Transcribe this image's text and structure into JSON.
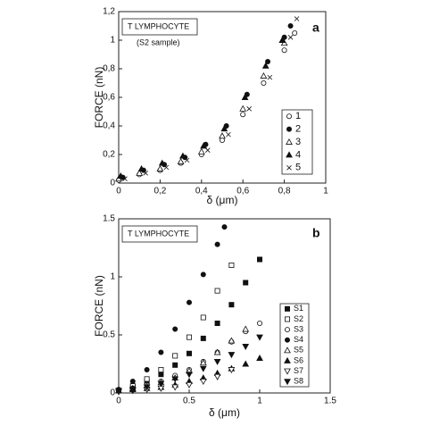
{
  "chart_data": [
    {
      "type": "scatter",
      "panel_label": "a",
      "annotation": "T   LYMPHOCYTE",
      "subannotation": "(S2 sample)",
      "x_label": "δ (μm)",
      "y_label": "FORCE (nN)",
      "xlim": [
        0,
        1
      ],
      "ylim": [
        0,
        1.2
      ],
      "xticks": [
        0,
        {
          "value": 0.2,
          "label": "0,2"
        },
        {
          "value": 0.4,
          "label": "0,4"
        },
        {
          "value": 0.6,
          "label": "0,6"
        },
        {
          "value": 0.8,
          "label": "0,8"
        },
        1
      ],
      "yticks": [
        0,
        {
          "value": 0.2,
          "label": "0,2"
        },
        {
          "value": 0.4,
          "label": "0,4"
        },
        {
          "value": 0.6,
          "label": "0,6"
        },
        {
          "value": 0.8,
          "label": "0,8"
        },
        1,
        {
          "value": 1.2,
          "label": "1,2"
        }
      ],
      "grid": false,
      "series": [
        {
          "name": "1",
          "marker": "circle-open",
          "color": "#111",
          "x": [
            0,
            0.1,
            0.2,
            0.3,
            0.4,
            0.5,
            0.6,
            0.7,
            0.8,
            0.85
          ],
          "values": [
            0.02,
            0.06,
            0.09,
            0.14,
            0.2,
            0.3,
            0.48,
            0.7,
            0.93,
            1.05
          ]
        },
        {
          "name": "2",
          "marker": "circle",
          "color": "#111",
          "x": [
            0.02,
            0.12,
            0.22,
            0.32,
            0.42,
            0.52,
            0.62,
            0.72,
            0.8,
            0.83
          ],
          "values": [
            0.04,
            0.09,
            0.13,
            0.18,
            0.27,
            0.4,
            0.62,
            0.85,
            1.02,
            1.1
          ]
        },
        {
          "name": "3",
          "marker": "triangle-open",
          "color": "#111",
          "x": [
            0,
            0.1,
            0.2,
            0.3,
            0.4,
            0.5,
            0.6,
            0.7,
            0.8
          ],
          "values": [
            0.03,
            0.07,
            0.1,
            0.15,
            0.22,
            0.33,
            0.52,
            0.75,
            0.98
          ]
        },
        {
          "name": "4",
          "marker": "triangle",
          "color": "#111",
          "x": [
            0.01,
            0.11,
            0.21,
            0.31,
            0.41,
            0.51,
            0.61,
            0.71,
            0.79
          ],
          "values": [
            0.05,
            0.1,
            0.14,
            0.19,
            0.26,
            0.38,
            0.6,
            0.82,
            1.0
          ]
        },
        {
          "name": "5",
          "marker": "cross",
          "color": "#111",
          "x": [
            0.03,
            0.13,
            0.23,
            0.33,
            0.43,
            0.53,
            0.63,
            0.73,
            0.83,
            0.86
          ],
          "values": [
            0.03,
            0.07,
            0.11,
            0.16,
            0.23,
            0.34,
            0.52,
            0.74,
            1.02,
            1.15
          ]
        }
      ]
    },
    {
      "type": "scatter",
      "panel_label": "b",
      "annotation": "T   LYMPHOCYTE",
      "x_label": "δ (μm)",
      "y_label": "FORCE (nN)",
      "xlim": [
        0,
        1.5
      ],
      "ylim": [
        0,
        1.5
      ],
      "xticks": [
        0,
        0.5,
        1,
        1.5
      ],
      "yticks": [
        0,
        0.5,
        1,
        1.5
      ],
      "grid": false,
      "series": [
        {
          "name": "S1",
          "marker": "square",
          "color": "#111",
          "x": [
            0,
            0.1,
            0.2,
            0.3,
            0.4,
            0.5,
            0.6,
            0.7,
            0.8,
            0.9,
            1.0
          ],
          "values": [
            0.02,
            0.05,
            0.1,
            0.16,
            0.24,
            0.34,
            0.47,
            0.6,
            0.76,
            0.95,
            1.15
          ]
        },
        {
          "name": "S2",
          "marker": "square-open",
          "color": "#111",
          "x": [
            0,
            0.1,
            0.2,
            0.3,
            0.4,
            0.5,
            0.6,
            0.7,
            0.8
          ],
          "values": [
            0.02,
            0.06,
            0.12,
            0.2,
            0.32,
            0.48,
            0.65,
            0.88,
            1.1
          ]
        },
        {
          "name": "S3",
          "marker": "circle-open",
          "color": "#111",
          "x": [
            0,
            0.1,
            0.2,
            0.3,
            0.4,
            0.5,
            0.6,
            0.7,
            0.8,
            0.9,
            1.0
          ],
          "values": [
            0.02,
            0.04,
            0.07,
            0.1,
            0.15,
            0.2,
            0.27,
            0.35,
            0.44,
            0.53,
            0.6
          ]
        },
        {
          "name": "S4",
          "marker": "circle",
          "color": "#111",
          "x": [
            0,
            0.1,
            0.2,
            0.3,
            0.4,
            0.5,
            0.6,
            0.7,
            0.75
          ],
          "values": [
            0.03,
            0.1,
            0.2,
            0.35,
            0.55,
            0.78,
            1.02,
            1.28,
            1.43
          ]
        },
        {
          "name": "S5",
          "marker": "triangle-open",
          "color": "#111",
          "x": [
            0,
            0.1,
            0.2,
            0.3,
            0.4,
            0.5,
            0.6,
            0.7,
            0.8,
            0.9
          ],
          "values": [
            0.02,
            0.04,
            0.06,
            0.09,
            0.13,
            0.19,
            0.26,
            0.35,
            0.45,
            0.55
          ]
        },
        {
          "name": "S6",
          "marker": "triangle",
          "color": "#111",
          "x": [
            0,
            0.1,
            0.2,
            0.3,
            0.4,
            0.5,
            0.6,
            0.7,
            0.8,
            0.9,
            1.0
          ],
          "values": [
            0.02,
            0.03,
            0.04,
            0.05,
            0.07,
            0.1,
            0.13,
            0.17,
            0.21,
            0.25,
            0.3
          ]
        },
        {
          "name": "S7",
          "marker": "down-open",
          "color": "#111",
          "x": [
            0,
            0.1,
            0.2,
            0.3,
            0.4,
            0.5,
            0.6,
            0.7,
            0.8
          ],
          "values": [
            0.01,
            0.02,
            0.03,
            0.04,
            0.05,
            0.07,
            0.1,
            0.14,
            0.2
          ]
        },
        {
          "name": "S8",
          "marker": "down",
          "color": "#111",
          "x": [
            0,
            0.1,
            0.2,
            0.3,
            0.4,
            0.5,
            0.6,
            0.7,
            0.8,
            0.9,
            1.0
          ],
          "values": [
            0.02,
            0.03,
            0.05,
            0.08,
            0.12,
            0.16,
            0.21,
            0.27,
            0.33,
            0.4,
            0.48
          ]
        }
      ]
    }
  ]
}
